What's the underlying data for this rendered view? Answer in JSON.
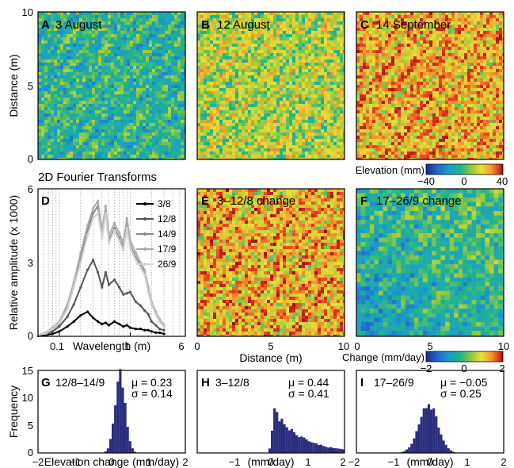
{
  "chart_data": [
    {
      "type": "heatmap",
      "letter": "A",
      "title": "3 August",
      "ylabel": "Distance (m)",
      "xlim": [
        0,
        10
      ],
      "ylim": [
        0,
        10
      ],
      "yticks": [
        "0",
        "5",
        "10"
      ],
      "texture": {
        "mean": 0.36,
        "spread": 0.15,
        "cell": 1.0
      }
    },
    {
      "type": "heatmap",
      "letter": "B",
      "title": "12 August",
      "xlim": [
        0,
        10
      ],
      "ylim": [
        0,
        10
      ],
      "texture": {
        "mean": 0.55,
        "spread": 0.18,
        "cell": 1.0
      }
    },
    {
      "type": "heatmap",
      "letter": "C",
      "title": "14 September",
      "xlim": [
        0,
        10
      ],
      "ylim": [
        0,
        10
      ],
      "texture": {
        "mean": 0.7,
        "spread": 0.2,
        "cell": 1.0
      }
    },
    {
      "type": "line",
      "letter": "D",
      "title": "2D Fourier Transforms",
      "xlabel": "Wavelength (m)",
      "ylabel": "Relative amplitude (x 1000)",
      "xscale": "log",
      "xlim": [
        0.05,
        6
      ],
      "ylim": [
        0,
        6
      ],
      "xticks": [
        "0.1",
        "1",
        "6"
      ],
      "yticks": [
        "0",
        "3",
        "6"
      ],
      "x": [
        0.05,
        0.065,
        0.08,
        0.1,
        0.13,
        0.16,
        0.2,
        0.25,
        0.3,
        0.35,
        0.4,
        0.45,
        0.5,
        0.6,
        0.7,
        0.8,
        0.9,
        1.0,
        1.2,
        1.4,
        1.6,
        1.8,
        2.0,
        2.3,
        2.6,
        3.0
      ],
      "series": [
        {
          "name": "3/8",
          "color": "#000000",
          "values": [
            0.02,
            0.05,
            0.1,
            0.2,
            0.4,
            0.6,
            0.85,
            1.0,
            0.75,
            0.6,
            0.5,
            0.55,
            0.45,
            0.6,
            0.5,
            0.4,
            0.45,
            0.35,
            0.3,
            0.3,
            0.25,
            0.25,
            0.2,
            0.15,
            0.15,
            0.1
          ]
        },
        {
          "name": "12/8",
          "color": "#555555",
          "values": [
            0.05,
            0.1,
            0.2,
            0.4,
            0.8,
            1.3,
            2.0,
            2.7,
            3.1,
            2.6,
            2.0,
            2.6,
            2.1,
            2.3,
            2.0,
            1.7,
            1.75,
            1.8,
            1.4,
            1.25,
            1.05,
            0.9,
            0.6,
            0.45,
            0.3,
            0.25
          ]
        },
        {
          "name": "14/9",
          "color": "#888888",
          "values": [
            0.05,
            0.15,
            0.3,
            0.5,
            1.2,
            2.0,
            3.2,
            4.3,
            5.0,
            5.3,
            4.1,
            5.1,
            3.9,
            4.4,
            4.0,
            3.6,
            4.6,
            3.7,
            3.2,
            2.9,
            2.6,
            1.9,
            1.3,
            0.9,
            0.6,
            0.4
          ]
        },
        {
          "name": "17/9",
          "color": "#aaaaaa",
          "values": [
            0.05,
            0.15,
            0.35,
            0.6,
            1.3,
            2.2,
            3.4,
            4.5,
            5.2,
            5.5,
            4.3,
            5.3,
            4.1,
            4.6,
            4.2,
            3.8,
            4.8,
            3.9,
            3.4,
            3.0,
            2.7,
            2.0,
            1.4,
            1.0,
            0.7,
            0.45
          ]
        },
        {
          "name": "26/9",
          "color": "#d2d2d2",
          "values": [
            0.05,
            0.12,
            0.3,
            0.55,
            1.1,
            2.0,
            3.0,
            4.1,
            4.8,
            5.0,
            4.0,
            5.0,
            3.8,
            4.3,
            3.9,
            3.5,
            4.4,
            3.6,
            3.1,
            2.8,
            2.5,
            1.8,
            1.3,
            0.9,
            0.6,
            0.4
          ]
        }
      ]
    },
    {
      "type": "heatmap",
      "letter": "E",
      "title": "3–12/8 change",
      "xlim": [
        0,
        10
      ],
      "ylim": [
        0,
        10
      ],
      "texture": {
        "mean": 0.7,
        "spread": 0.22,
        "cell": 1.0
      }
    },
    {
      "type": "heatmap",
      "letter": "F",
      "title": "17–26/9 change",
      "xlim": [
        0,
        10
      ],
      "ylim": [
        0,
        10
      ],
      "texture": {
        "mean": 0.36,
        "spread": 0.14,
        "cell": 1.4
      }
    },
    {
      "type": "bar",
      "letter": "G",
      "title": "12/8–14/9",
      "xlabel": "Elevation change (mm/day)",
      "ylabel": "Frequency",
      "xlim": [
        -2,
        2
      ],
      "ylim": [
        0,
        15
      ],
      "xticks": [
        "−2",
        "−1",
        "0",
        "1",
        "2"
      ],
      "yticks": [
        "0",
        "5",
        "10",
        "15"
      ],
      "stats": {
        "mu": "μ = 0.23",
        "sigma": "σ = 0.14"
      },
      "mean": 0.23,
      "sd": 0.14,
      "peak": 14.5
    },
    {
      "type": "bar",
      "letter": "H",
      "title": "3–12/8",
      "xlabel": "(mm/day)",
      "xlim": [
        -2,
        2
      ],
      "xticks": [
        "−2",
        "−1",
        "0",
        "1",
        "2"
      ],
      "stats": {
        "mu": "μ = 0.44",
        "sigma": "σ = 0.41"
      },
      "mean": 0.44,
      "sd": 0.41,
      "peak": 7.5
    },
    {
      "type": "bar",
      "letter": "I",
      "title": "17–26/9",
      "xlabel": "(mm/day)",
      "xlim": [
        -2,
        2
      ],
      "xticks": [
        "−2",
        "−1",
        "0",
        "1",
        "2"
      ],
      "stats": {
        "mu": "μ = −0.05",
        "sigma": "σ = 0.25"
      },
      "mean": -0.05,
      "sd": 0.25,
      "peak": 9.0
    }
  ],
  "colorbar_elevation": {
    "label": "Elevation (mm)",
    "ticks": [
      "−40",
      "0",
      "40"
    ]
  },
  "colorbar_change": {
    "label": "Change (mm/day)",
    "ticks": [
      "−2",
      "0",
      "2"
    ]
  },
  "axes_shared": {
    "distance_label": "Distance (m)",
    "distance_ticks": [
      "0",
      "5",
      "10"
    ]
  },
  "colormap": [
    "#1e2a8c",
    "#2266cc",
    "#1aa0c8",
    "#20b48a",
    "#9cca3c",
    "#e8e03a",
    "#f29a2a",
    "#e23222",
    "#8a1010"
  ],
  "hist_color": "#2b2d7e"
}
